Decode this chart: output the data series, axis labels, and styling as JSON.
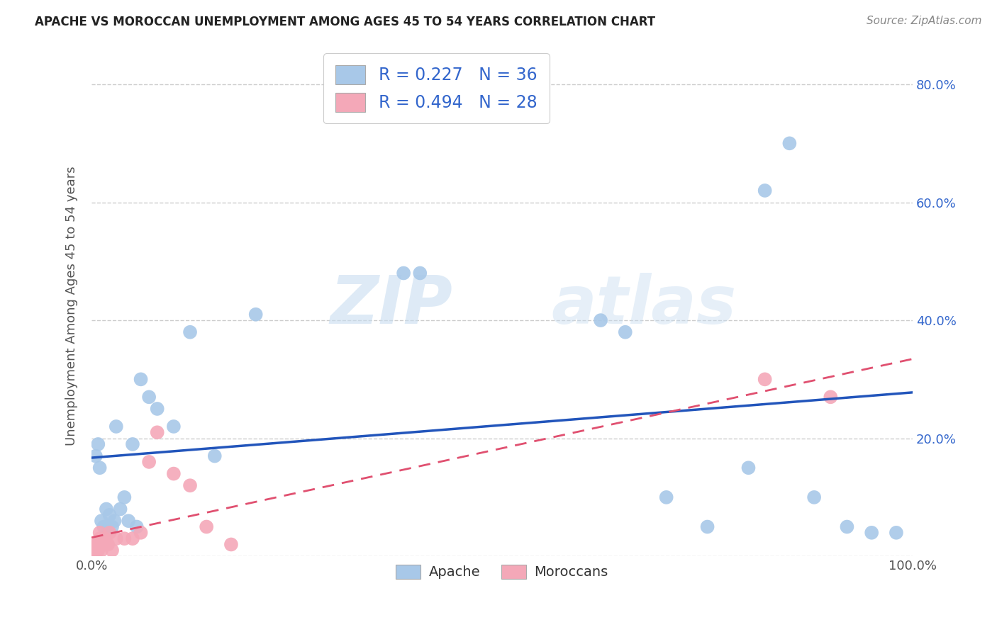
{
  "title": "APACHE VS MOROCCAN UNEMPLOYMENT AMONG AGES 45 TO 54 YEARS CORRELATION CHART",
  "source": "Source: ZipAtlas.com",
  "ylabel": "Unemployment Among Ages 45 to 54 years",
  "xlim": [
    0,
    1.0
  ],
  "ylim": [
    0,
    0.85
  ],
  "apache_R": 0.227,
  "apache_N": 36,
  "moroccan_R": 0.494,
  "moroccan_N": 28,
  "apache_color": "#a8c8e8",
  "moroccan_color": "#f4a8b8",
  "apache_line_color": "#2255bb",
  "moroccan_line_color": "#e05070",
  "legend_label_apache": "Apache",
  "legend_label_moroccan": "Moroccans",
  "watermark_zip": "ZIP",
  "watermark_atlas": "atlas",
  "apache_x": [
    0.005,
    0.008,
    0.01,
    0.012,
    0.015,
    0.018,
    0.02,
    0.022,
    0.025,
    0.028,
    0.03,
    0.035,
    0.04,
    0.045,
    0.05,
    0.055,
    0.06,
    0.07,
    0.08,
    0.1,
    0.12,
    0.15,
    0.2,
    0.38,
    0.4,
    0.62,
    0.65,
    0.7,
    0.75,
    0.8,
    0.82,
    0.85,
    0.88,
    0.92,
    0.95,
    0.98
  ],
  "apache_y": [
    0.17,
    0.19,
    0.15,
    0.06,
    0.05,
    0.08,
    0.05,
    0.07,
    0.05,
    0.06,
    0.22,
    0.08,
    0.1,
    0.06,
    0.19,
    0.05,
    0.3,
    0.27,
    0.25,
    0.22,
    0.38,
    0.17,
    0.41,
    0.48,
    0.48,
    0.4,
    0.38,
    0.1,
    0.05,
    0.15,
    0.62,
    0.7,
    0.1,
    0.05,
    0.04,
    0.04
  ],
  "moroccan_x": [
    0.003,
    0.005,
    0.006,
    0.007,
    0.008,
    0.009,
    0.01,
    0.01,
    0.012,
    0.013,
    0.015,
    0.016,
    0.018,
    0.02,
    0.022,
    0.025,
    0.03,
    0.04,
    0.05,
    0.06,
    0.07,
    0.08,
    0.1,
    0.12,
    0.14,
    0.17,
    0.82,
    0.9
  ],
  "moroccan_y": [
    0.01,
    0.02,
    0.01,
    0.02,
    0.01,
    0.02,
    0.03,
    0.04,
    0.01,
    0.02,
    0.02,
    0.03,
    0.02,
    0.02,
    0.04,
    0.01,
    0.03,
    0.03,
    0.03,
    0.04,
    0.16,
    0.21,
    0.14,
    0.12,
    0.05,
    0.02,
    0.3,
    0.27
  ]
}
